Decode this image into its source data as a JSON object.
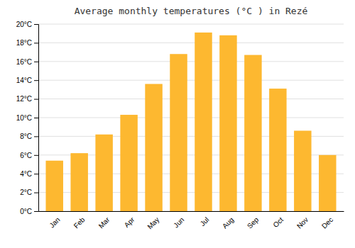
{
  "chart_data": {
    "type": "bar",
    "title": "Average monthly temperatures (°C ) in Rezé",
    "categories": [
      "Jan",
      "Feb",
      "Mar",
      "Apr",
      "May",
      "Jun",
      "Jul",
      "Aug",
      "Sep",
      "Oct",
      "Nov",
      "Dec"
    ],
    "values": [
      5.4,
      6.2,
      8.2,
      10.3,
      13.6,
      16.8,
      19.1,
      18.8,
      16.7,
      13.1,
      8.6,
      6.0
    ],
    "color": "#FDB830",
    "ylim": [
      0,
      20
    ],
    "yticks": [
      {
        "value": 0,
        "label": "0°C"
      },
      {
        "value": 2,
        "label": "2°C"
      },
      {
        "value": 4,
        "label": "4°C"
      },
      {
        "value": 6,
        "label": "6°C"
      },
      {
        "value": 8,
        "label": "8°C"
      },
      {
        "value": 10,
        "label": "10°C"
      },
      {
        "value": 12,
        "label": "12°C"
      },
      {
        "value": 14,
        "label": "14°C"
      },
      {
        "value": 16,
        "label": "16°C"
      },
      {
        "value": 18,
        "label": "18°C"
      },
      {
        "value": 20,
        "label": "20°C"
      }
    ],
    "grid": true
  }
}
